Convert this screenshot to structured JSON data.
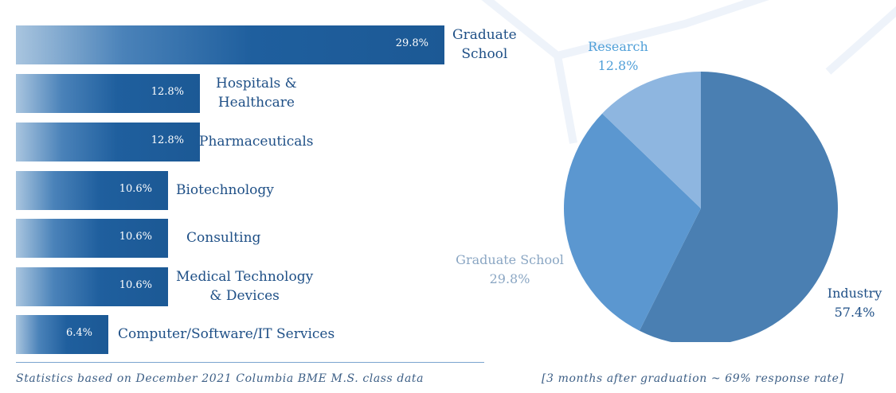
{
  "chart_data": [
    {
      "type": "bar",
      "orientation": "horizontal",
      "categories": [
        "Graduate School",
        "Hospitals & Healthcare",
        "Pharmaceuticals",
        "Biotechnology",
        "Consulting",
        "Medical Technology & Devices",
        "Computer/Software/IT Services"
      ],
      "category_lines": [
        [
          "Graduate",
          "School"
        ],
        [
          "Hospitals &",
          "Healthcare"
        ],
        [
          "Pharmaceuticals"
        ],
        [
          "Biotechnology"
        ],
        [
          "Consulting"
        ],
        [
          "Medical Technology",
          "& Devices"
        ],
        [
          "Computer/Software/IT Services"
        ]
      ],
      "values": [
        29.8,
        12.8,
        12.8,
        10.6,
        10.6,
        10.6,
        6.4
      ],
      "value_labels": [
        "29.8%",
        "12.8%",
        "12.8%",
        "10.6%",
        "10.6%",
        "10.6%",
        "6.4%"
      ],
      "xlim": [
        0,
        29.8
      ]
    },
    {
      "type": "pie",
      "slices": [
        {
          "label": "Industry",
          "value": 57.4,
          "value_label": "57.4%",
          "color": "#4a7fb2",
          "label_color": "#1e4f86"
        },
        {
          "label": "Graduate School",
          "value": 29.8,
          "value_label": "29.8%",
          "color": "#5b97d0",
          "label_color": "#8aa6c3"
        },
        {
          "label": "Research",
          "value": 12.8,
          "value_label": "12.8%",
          "color": "#8eb6e0",
          "label_color": "#4f9fd8"
        }
      ]
    }
  ],
  "footer": {
    "left": "Statistics based on December 2021 Columbia BME M.S. class data",
    "right": "[3 months after graduation ~ 69% response rate]"
  }
}
